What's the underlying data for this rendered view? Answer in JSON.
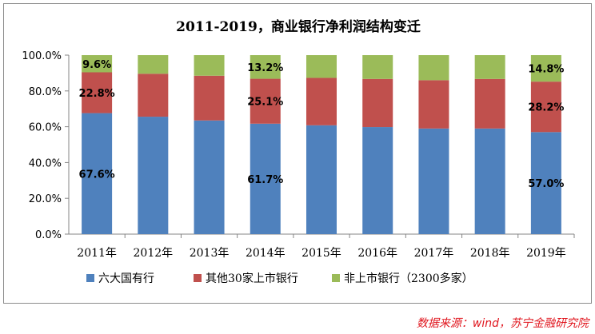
{
  "chart_data": {
    "type": "bar",
    "stacked": true,
    "title": "2011-2019，商业银行净利润结构变迁",
    "categories": [
      "2011年",
      "2012年",
      "2013年",
      "2014年",
      "2015年",
      "2016年",
      "2017年",
      "2018年",
      "2019年"
    ],
    "series": [
      {
        "name": "六大国有行",
        "color": "#4f81bd",
        "values": [
          67.6,
          65.6,
          63.5,
          61.7,
          60.8,
          59.8,
          59.0,
          59.0,
          57.0
        ]
      },
      {
        "name": "其他30家上市银行",
        "color": "#c0504d",
        "values": [
          22.8,
          24.0,
          25.0,
          25.1,
          26.5,
          26.9,
          27.0,
          27.7,
          28.2
        ]
      },
      {
        "name": "非上市银行（2300多家）",
        "color": "#9bbb59",
        "values": [
          9.6,
          10.4,
          11.5,
          13.2,
          12.7,
          13.3,
          14.0,
          13.3,
          14.8
        ]
      }
    ],
    "data_labels": [
      {
        "category": "2011年",
        "series": "六大国有行",
        "text": "67.6%"
      },
      {
        "category": "2011年",
        "series": "其他30家上市银行",
        "text": "22.8%"
      },
      {
        "category": "2011年",
        "series": "非上市银行（2300多家）",
        "text": "9.6%"
      },
      {
        "category": "2014年",
        "series": "六大国有行",
        "text": "61.7%"
      },
      {
        "category": "2014年",
        "series": "其他30家上市银行",
        "text": "25.1%"
      },
      {
        "category": "2014年",
        "series": "非上市银行（2300多家）",
        "text": "13.2%"
      },
      {
        "category": "2019年",
        "series": "六大国有行",
        "text": "57.0%"
      },
      {
        "category": "2019年",
        "series": "其他30家上市银行",
        "text": "28.2%"
      },
      {
        "category": "2019年",
        "series": "非上市银行（2300多家）",
        "text": "14.8%"
      }
    ],
    "y_ticks": [
      "0.0%",
      "20.0%",
      "40.0%",
      "60.0%",
      "80.0%",
      "100.0%"
    ],
    "ylim": [
      0,
      100
    ],
    "grid": false,
    "legend_position": "bottom"
  },
  "source": "数据来源：wind，苏宁金融研究院"
}
